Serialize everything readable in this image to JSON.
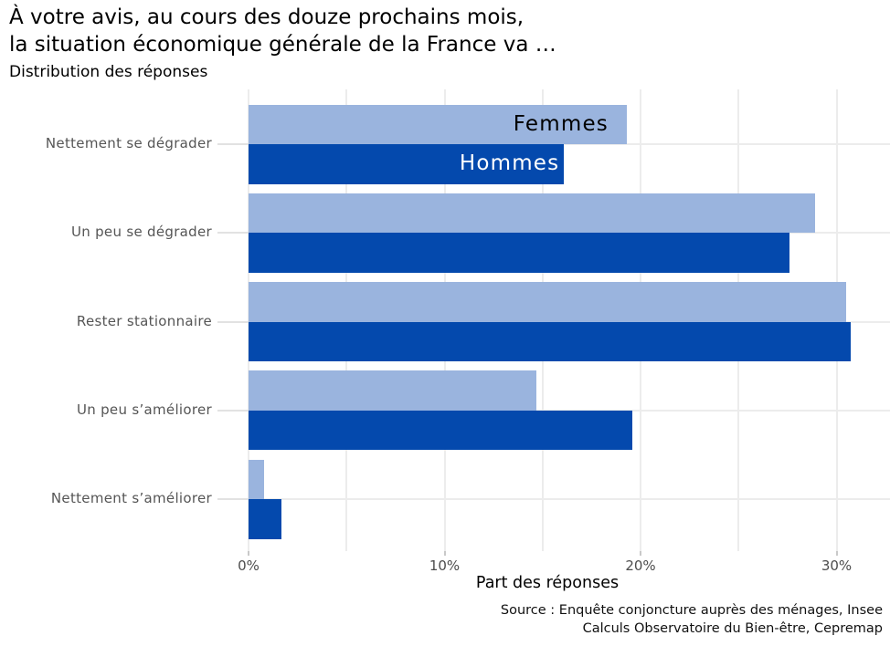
{
  "header": {
    "title": "À votre avis, au cours des douze prochains mois,\nla situation économique générale de la France va …",
    "subtitle": "Distribution des réponses"
  },
  "chart_data": {
    "type": "bar",
    "orientation": "horizontal",
    "title": "À votre avis, au cours des douze prochains mois, la situation économique générale de la France va …",
    "subtitle": "Distribution des réponses",
    "xlabel": "Part des réponses",
    "categories": [
      "Nettement se dégrader",
      "Un peu se dégrader",
      "Rester stationnaire",
      "Un peu s’améliorer",
      "Nettement s’améliorer"
    ],
    "series": [
      {
        "name": "Femmes",
        "color": "#9ab4de",
        "label_text_color": "#000000",
        "values": [
          19.3,
          28.9,
          30.5,
          14.7,
          0.8
        ]
      },
      {
        "name": "Hommes",
        "color": "#0449ad",
        "label_text_color": "#ffffff",
        "values": [
          16.1,
          27.6,
          30.7,
          19.6,
          1.7
        ]
      }
    ],
    "unit": "percent",
    "xlim": [
      0,
      32.7
    ],
    "x_ticks": [
      {
        "value": 0,
        "label": "0%"
      },
      {
        "value": 10,
        "label": "10%"
      },
      {
        "value": 20,
        "label": "20%"
      },
      {
        "value": 30,
        "label": "30%"
      }
    ],
    "grid": true,
    "grid_interval": 5,
    "legend_position": "inside-first-bars",
    "source": "Source : Enquête conjoncture auprès des ménages, Insee\nCalculs Observatoire du Bien-être, Cepremap"
  },
  "footer": {
    "source": "Source : Enquête conjoncture auprès des ménages, Insee\nCalculs Observatoire du Bien-être, Cepremap"
  },
  "colors": {
    "femmes_bar": "#9ab4de",
    "hommes_bar": "#0449ad",
    "gridline": "#ececec",
    "axis_text": "#555555",
    "text": "#000000",
    "background": "#ffffff"
  }
}
